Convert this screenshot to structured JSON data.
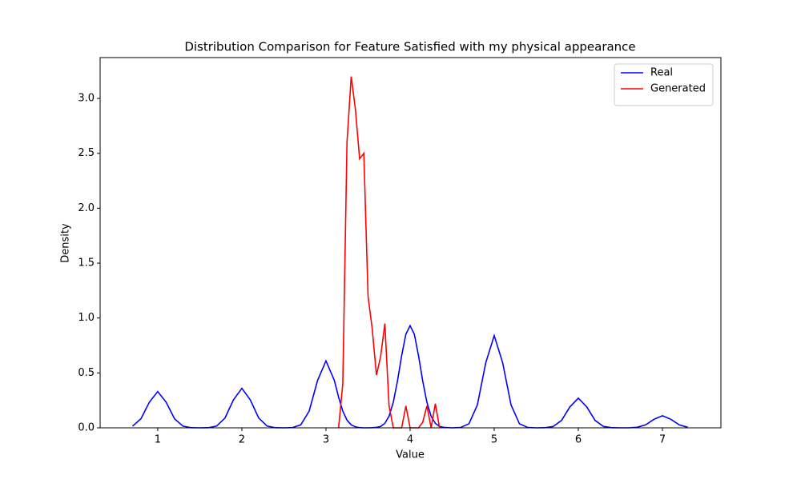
{
  "chart_data": {
    "type": "line",
    "title": "Distribution Comparison for Feature Satisfied with my physical appearance",
    "x_label": "Value",
    "y_label": "Density",
    "x": [
      0.7,
      0.8,
      0.9,
      1.0,
      1.1,
      1.2,
      1.3,
      1.4,
      1.5,
      1.6,
      1.7,
      1.8,
      1.9,
      2.0,
      2.1,
      2.2,
      2.3,
      2.4,
      2.5,
      2.6,
      2.7,
      2.8,
      2.9,
      3.0,
      3.1,
      3.15,
      3.2,
      3.25,
      3.3,
      3.35,
      3.4,
      3.45,
      3.5,
      3.55,
      3.6,
      3.65,
      3.7,
      3.75,
      3.8,
      3.85,
      3.9,
      3.95,
      4.0,
      4.05,
      4.1,
      4.15,
      4.2,
      4.25,
      4.3,
      4.35,
      4.4,
      4.5,
      4.6,
      4.7,
      4.8,
      4.9,
      5.0,
      5.1,
      5.2,
      5.3,
      5.4,
      5.5,
      5.6,
      5.7,
      5.8,
      5.9,
      6.0,
      6.1,
      6.2,
      6.3,
      6.4,
      6.5,
      6.6,
      6.7,
      6.8,
      6.9,
      7.0,
      7.1,
      7.2,
      7.3
    ],
    "series": [
      {
        "name": "Real",
        "color": "#0000ff",
        "values": [
          0.015,
          0.082,
          0.233,
          0.33,
          0.233,
          0.082,
          0.015,
          0.001,
          0,
          0.001,
          0.016,
          0.09,
          0.255,
          0.36,
          0.255,
          0.09,
          0.016,
          0.001,
          0,
          0.002,
          0.027,
          0.152,
          0.431,
          0.61,
          0.431,
          0.279,
          0.152,
          0.07,
          0.027,
          0.009,
          0.002,
          0,
          0,
          0.001,
          0.004,
          0.013,
          0.041,
          0.106,
          0.232,
          0.426,
          0.658,
          0.853,
          0.93,
          0.853,
          0.658,
          0.426,
          0.232,
          0.106,
          0.041,
          0.013,
          0.004,
          0,
          0.003,
          0.037,
          0.209,
          0.594,
          0.84,
          0.594,
          0.209,
          0.037,
          0.003,
          0,
          0.001,
          0.012,
          0.067,
          0.191,
          0.27,
          0.191,
          0.067,
          0.012,
          0.001,
          0,
          0,
          0.005,
          0.027,
          0.078,
          0.11,
          0.078,
          0.027,
          0.005
        ]
      },
      {
        "name": "Generated",
        "color": "#ff0000",
        "values": [
          null,
          null,
          null,
          null,
          null,
          null,
          null,
          null,
          null,
          null,
          null,
          null,
          null,
          null,
          null,
          null,
          null,
          null,
          null,
          null,
          null,
          null,
          null,
          null,
          null,
          0,
          0.4,
          2.6,
          3.2,
          2.9,
          2.45,
          2.5,
          1.2,
          0.9,
          0.48,
          0.65,
          0.95,
          0.2,
          0,
          0,
          0,
          0.2,
          0,
          0,
          0,
          0.05,
          0.2,
          0,
          0.22,
          0,
          null,
          null,
          null,
          null,
          null,
          null,
          null,
          null,
          null,
          null,
          null,
          null,
          null,
          null,
          null,
          null,
          null,
          null,
          null,
          null,
          null,
          null,
          null,
          null,
          null,
          null,
          null,
          null,
          null,
          null
        ]
      }
    ],
    "xlim": [
      0.315,
      7.695
    ],
    "xticks": [
      1,
      2,
      3,
      4,
      5,
      6,
      7
    ],
    "ylim": [
      0,
      3.372
    ],
    "yticks": [
      {
        "value": 0,
        "label": "0.0"
      },
      {
        "value": 0.5,
        "label": "0.5"
      },
      {
        "value": 1,
        "label": "1.0"
      },
      {
        "value": 1.5,
        "label": "1.5"
      },
      {
        "value": 2,
        "label": "2.0"
      },
      {
        "value": 2.5,
        "label": "2.5"
      },
      {
        "value": 3,
        "label": "3.0"
      }
    ],
    "legend": "upper right",
    "grid": false
  }
}
